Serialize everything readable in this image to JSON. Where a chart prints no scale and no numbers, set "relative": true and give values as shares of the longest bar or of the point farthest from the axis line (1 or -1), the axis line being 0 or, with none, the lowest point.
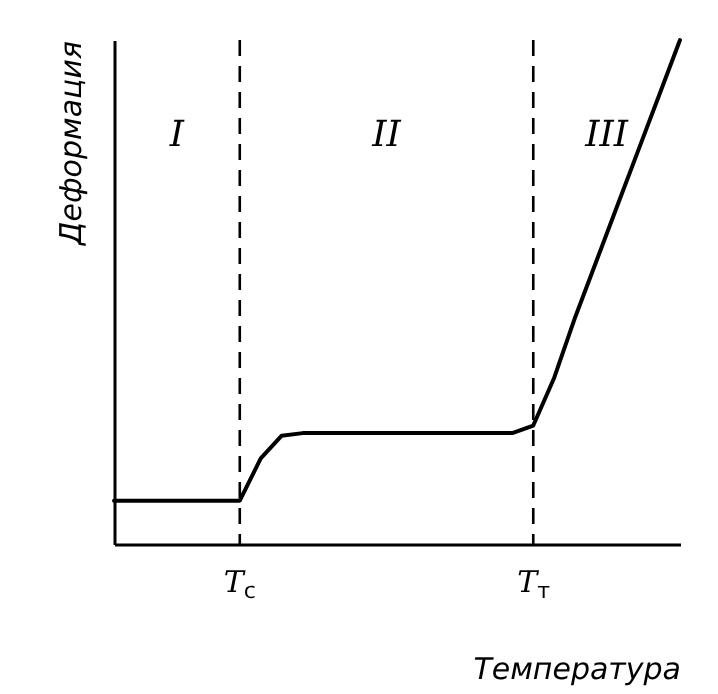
{
  "chart_data": {
    "type": "line",
    "relative": true,
    "xlabel": "Температура",
    "ylabel": "Деформация",
    "categories": [
      null,
      null,
      null,
      null,
      null,
      null,
      "T$_{с}$",
      null,
      null,
      null,
      null,
      null,
      null,
      null,
      null,
      null,
      null,
      null,
      null,
      null,
      "T$_{т}$",
      null,
      null,
      null,
      null,
      null,
      null,
      null
    ],
    "series": [
      {
        "color": "#000000",
        "values": [
          0.086,
          0.086,
          0.086,
          0.086,
          0.086,
          0.086,
          0.086,
          0.17,
          0.215,
          0.22,
          0.22,
          0.22,
          0.22,
          0.22,
          0.22,
          0.22,
          0.22,
          0.22,
          0.22,
          0.22,
          0.235,
          0.33,
          0.45,
          0.56,
          0.67,
          0.78,
          0.89,
          1.0
        ]
      }
    ],
    "ref_lines": [
      {
        "axis": "x",
        "value": "T$_{с}$",
        "line_style": "dashed"
      },
      {
        "axis": "x",
        "value": "T$_{т}$",
        "line_style": "dashed"
      }
    ],
    "annotations": [
      "I",
      "II",
      "III"
    ],
    "grid": false,
    "marker": "none",
    "line_style": "solid"
  }
}
